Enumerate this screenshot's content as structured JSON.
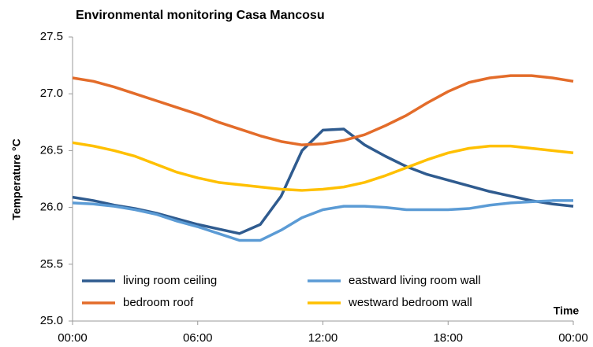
{
  "chart_data": {
    "type": "line",
    "title": "Environmental monitoring Casa Mancosu",
    "xlabel": "Time",
    "ylabel": "Temperature °C",
    "x": [
      0,
      1,
      2,
      3,
      4,
      5,
      6,
      7,
      8,
      9,
      10,
      11,
      12,
      13,
      14,
      15,
      16,
      17,
      18,
      19,
      20,
      21,
      22,
      23,
      24
    ],
    "xlim": [
      0,
      24
    ],
    "xticks": [
      {
        "value": 0,
        "label": "00:00"
      },
      {
        "value": 6,
        "label": "06:00"
      },
      {
        "value": 12,
        "label": "12:00"
      },
      {
        "value": 18,
        "label": "18:00"
      },
      {
        "value": 24,
        "label": "00:00"
      }
    ],
    "ylim": [
      25.0,
      27.5
    ],
    "yticks": [
      {
        "value": 25,
        "label": "25.0"
      },
      25.5,
      {
        "value": 26,
        "label": "26.0"
      },
      26.5,
      {
        "value": 27,
        "label": "27.0"
      },
      27.5
    ],
    "grid": false,
    "legend": "lower",
    "series": [
      {
        "name": "living room ceiling",
        "color": "#2f5b8f",
        "values": [
          26.09,
          26.06,
          26.02,
          25.99,
          25.95,
          25.9,
          25.85,
          25.81,
          25.77,
          25.85,
          26.1,
          26.5,
          26.68,
          26.69,
          26.55,
          26.45,
          26.36,
          26.29,
          26.24,
          26.19,
          26.14,
          26.1,
          26.06,
          26.03,
          26.01
        ]
      },
      {
        "name": "eastward living room wall",
        "color": "#5b9bd5",
        "values": [
          26.04,
          26.03,
          26.01,
          25.98,
          25.94,
          25.88,
          25.83,
          25.77,
          25.71,
          25.71,
          25.8,
          25.91,
          25.98,
          26.01,
          26.01,
          26.0,
          25.98,
          25.98,
          25.98,
          25.99,
          26.02,
          26.04,
          26.05,
          26.06,
          26.06
        ]
      },
      {
        "name": "bedroom roof",
        "color": "#e36c2a",
        "values": [
          27.14,
          27.11,
          27.06,
          27.0,
          26.94,
          26.88,
          26.82,
          26.75,
          26.69,
          26.63,
          26.58,
          26.55,
          26.56,
          26.59,
          26.64,
          26.72,
          26.81,
          26.92,
          27.02,
          27.1,
          27.14,
          27.16,
          27.16,
          27.14,
          27.11
        ]
      },
      {
        "name": "westward bedroom wall",
        "color": "#ffc000",
        "values": [
          26.57,
          26.54,
          26.5,
          26.45,
          26.38,
          26.31,
          26.26,
          26.22,
          26.2,
          26.18,
          26.16,
          26.15,
          26.16,
          26.18,
          26.22,
          26.28,
          26.35,
          26.42,
          26.48,
          26.52,
          26.54,
          26.54,
          26.52,
          26.5,
          26.48
        ]
      }
    ]
  }
}
